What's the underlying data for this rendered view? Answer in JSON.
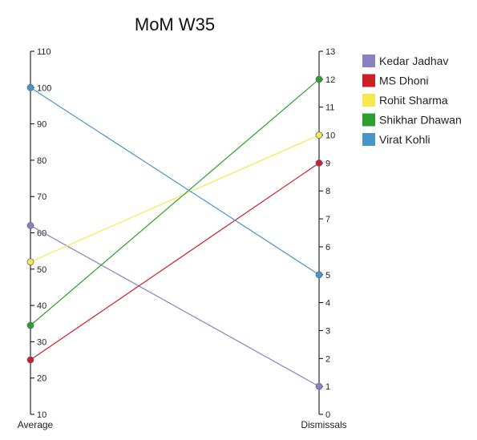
{
  "chart_data": {
    "type": "parallel-coordinates",
    "title": "MoM W35",
    "axes": [
      {
        "name": "Average",
        "range": [
          10,
          110
        ],
        "ticks": [
          10,
          20,
          30,
          40,
          50,
          60,
          70,
          80,
          90,
          100,
          110
        ]
      },
      {
        "name": "Dismissals",
        "range": [
          0,
          13
        ],
        "ticks": [
          0,
          1,
          2,
          3,
          4,
          5,
          6,
          7,
          8,
          9,
          10,
          11,
          12,
          13
        ]
      }
    ],
    "series": [
      {
        "name": "Kedar Jadhav",
        "color": "#8a82c0",
        "values": [
          62,
          1
        ]
      },
      {
        "name": "MS Dhoni",
        "color": "#cc2027",
        "values": [
          25,
          9
        ]
      },
      {
        "name": "Rohit Sharma",
        "color": "#f7e84d",
        "values": [
          52,
          10
        ]
      },
      {
        "name": "Shikhar Dhawan",
        "color": "#2ca02c",
        "values": [
          34.5,
          12
        ]
      },
      {
        "name": "Virat Kohli",
        "color": "#4a95c8",
        "values": [
          100,
          5
        ]
      }
    ],
    "legend_position": "top-right",
    "grid": false
  }
}
